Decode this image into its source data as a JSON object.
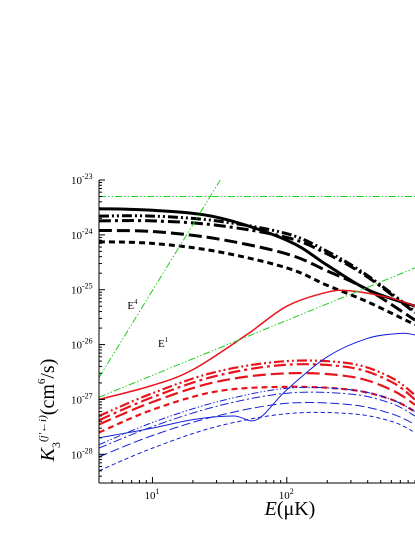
{
  "chart_data": {
    "type": "line",
    "title": "",
    "x_scale": "log",
    "y_scale": "log",
    "xlim": [
      4,
      900
    ],
    "ylim": [
      3e-29,
      1e-23
    ],
    "x_ticks": [
      {
        "value": 10,
        "label": "10",
        "exp": "1"
      },
      {
        "value": 100,
        "label": "10",
        "exp": "2"
      }
    ],
    "y_ticks": [
      {
        "value": 1e-28,
        "label": "10",
        "exp": "-28"
      },
      {
        "value": 1e-27,
        "label": "10",
        "exp": "-27"
      },
      {
        "value": 1e-26,
        "label": "10",
        "exp": "-26"
      },
      {
        "value": 1e-25,
        "label": "10",
        "exp": "-25"
      },
      {
        "value": 1e-24,
        "label": "10",
        "exp": "-24"
      },
      {
        "value": 1e-23,
        "label": "10",
        "exp": "-23"
      }
    ],
    "xlabel": {
      "prefix": "E",
      "unit": "(μK)"
    },
    "ylabel": {
      "prefix": "K",
      "sub": "3",
      "sup": "(j'←i)",
      "unit": "(cm",
      "unit_sup": "6",
      "unit_tail": "/s)"
    },
    "annotations": [
      {
        "text": "E",
        "sup": "4",
        "x": 6.5,
        "y": 4.5e-26
      },
      {
        "text": "E",
        "sup": "1",
        "x": 11,
        "y": 9e-27
      }
    ],
    "colors": {
      "black": "#000000",
      "red": "#e8141b",
      "blue": "#1320d6",
      "green": "#1ccf1c"
    },
    "series": [
      {
        "color": "black",
        "dash": "solid",
        "width": 3,
        "x": [
          4,
          10,
          30,
          100,
          200,
          400,
          900
        ],
        "y": [
          3e-24,
          2.8e-24,
          2.1e-24,
          8e-25,
          2.8e-25,
          1e-25,
          5e-26
        ]
      },
      {
        "color": "black",
        "dash": "dashdotdot",
        "width": 3,
        "x": [
          4,
          10,
          30,
          100,
          200,
          400,
          900
        ],
        "y": [
          2.2e-24,
          2.2e-24,
          1.8e-24,
          1.05e-24,
          5e-25,
          1.8e-25,
          4e-26
        ]
      },
      {
        "color": "black",
        "dash": "dashdot",
        "width": 3,
        "x": [
          4,
          10,
          30,
          100,
          200,
          400,
          900
        ],
        "y": [
          1.8e-24,
          1.8e-24,
          1.5e-24,
          9e-25,
          4.5e-25,
          1.7e-25,
          3.8e-26
        ]
      },
      {
        "color": "black",
        "dash": "longdash",
        "width": 3,
        "x": [
          4,
          10,
          30,
          100,
          200,
          400,
          900
        ],
        "y": [
          1.2e-24,
          1.15e-24,
          8.5e-25,
          4.5e-25,
          2.2e-25,
          1e-25,
          2.8e-26
        ]
      },
      {
        "color": "black",
        "dash": "shortdash",
        "width": 3,
        "x": [
          4,
          10,
          30,
          100,
          200,
          400,
          900
        ],
        "y": [
          7.5e-25,
          7e-25,
          5e-25,
          2.5e-25,
          1.2e-25,
          6e-26,
          2.3e-26
        ]
      },
      {
        "color": "red",
        "dash": "solid",
        "width": 1.5,
        "x": [
          4,
          10,
          20,
          50,
          100,
          200,
          300,
          600,
          900
        ],
        "y": [
          1e-27,
          1.8e-27,
          3.5e-27,
          1.5e-26,
          5e-26,
          9e-26,
          9.5e-26,
          7e-26,
          5e-26
        ]
      },
      {
        "color": "red",
        "dash": "dashdotdot",
        "width": 2.2,
        "x": [
          4,
          10,
          30,
          100,
          300,
          600,
          900
        ],
        "y": [
          5e-28,
          1.3e-27,
          3.2e-27,
          5e-27,
          4.5e-27,
          2.5e-27,
          1.2e-27
        ]
      },
      {
        "color": "red",
        "dash": "dashdot",
        "width": 2.2,
        "x": [
          4,
          10,
          30,
          100,
          300,
          600,
          900
        ],
        "y": [
          4.2e-28,
          1.1e-27,
          2.7e-27,
          4.3e-27,
          3.8e-27,
          2.1e-27,
          1e-27
        ]
      },
      {
        "color": "red",
        "dash": "longdash",
        "width": 2.2,
        "x": [
          4,
          10,
          30,
          100,
          300,
          600,
          900
        ],
        "y": [
          3.5e-28,
          9e-28,
          2.1e-27,
          3e-27,
          2.6e-27,
          1.5e-27,
          8e-28
        ]
      },
      {
        "color": "red",
        "dash": "shortdash",
        "width": 2.2,
        "x": [
          4,
          10,
          30,
          100,
          300,
          600,
          900
        ],
        "y": [
          2.5e-28,
          6.5e-28,
          1.4e-27,
          1.7e-27,
          1.5e-27,
          1e-27,
          6e-28
        ]
      },
      {
        "color": "blue",
        "dash": "solid",
        "width": 1,
        "x": [
          4,
          10,
          20,
          40,
          60,
          100,
          200,
          400,
          700,
          900
        ],
        "y": [
          2e-28,
          3e-28,
          4.3e-28,
          5e-28,
          4.3e-28,
          1.5e-27,
          6e-27,
          1.3e-26,
          1.6e-26,
          1.5e-26
        ]
      },
      {
        "color": "blue",
        "dash": "dashdotdot",
        "width": 1,
        "x": [
          4,
          10,
          30,
          100,
          300,
          600,
          900
        ],
        "y": [
          1.5e-28,
          3.8e-28,
          9e-28,
          1.6e-27,
          1.5e-27,
          1e-27,
          6e-28
        ]
      },
      {
        "color": "blue",
        "dash": "dashdot",
        "width": 1,
        "x": [
          4,
          10,
          30,
          100,
          300,
          600,
          900
        ],
        "y": [
          1.3e-28,
          3.2e-28,
          7.5e-28,
          1.3e-27,
          1.25e-27,
          8.5e-28,
          5e-28
        ]
      },
      {
        "color": "blue",
        "dash": "longdash",
        "width": 1,
        "x": [
          4,
          10,
          30,
          100,
          300,
          600,
          900
        ],
        "y": [
          9e-29,
          2.2e-28,
          5e-28,
          8.5e-28,
          8e-28,
          5.5e-28,
          3.5e-28
        ]
      },
      {
        "color": "blue",
        "dash": "shortdash",
        "width": 1,
        "x": [
          4,
          10,
          30,
          100,
          300,
          600,
          900
        ],
        "y": [
          5e-29,
          1.3e-28,
          3.2e-28,
          5.5e-28,
          5.5e-28,
          4e-28,
          2.5e-28
        ]
      },
      {
        "color": "green",
        "dash": "dashdotdot",
        "width": 1,
        "x": [
          4,
          900
        ],
        "y": [
          5e-24,
          5e-24
        ]
      },
      {
        "color": "green",
        "dash": "dashdotdot",
        "width": 1,
        "x": [
          4,
          32
        ],
        "y": [
          2.5e-27,
          1e-23
        ]
      },
      {
        "color": "green",
        "dash": "dashdotdot",
        "width": 1,
        "x": [
          4,
          900
        ],
        "y": [
          1.1e-27,
          2.5e-25
        ]
      }
    ]
  }
}
